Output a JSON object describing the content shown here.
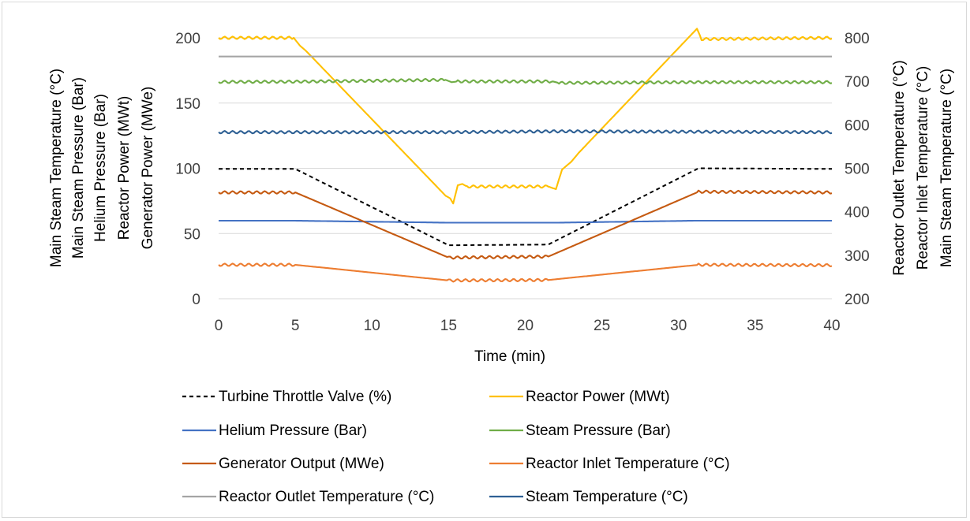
{
  "chart_data": {
    "type": "line",
    "xlabel": "Time (min)",
    "xlim": [
      0,
      40
    ],
    "x_ticks": [
      "0",
      "5",
      "10",
      "15",
      "20",
      "25",
      "30",
      "35",
      "40"
    ],
    "ylim_left": [
      0,
      200
    ],
    "ylim_right": [
      200,
      800
    ],
    "y_ticks_left": [
      "0",
      "50",
      "100",
      "150",
      "200"
    ],
    "y_ticks_right": [
      "200",
      "300",
      "400",
      "500",
      "600",
      "700",
      "800"
    ],
    "ylabel_left_lines": [
      "Main Steam Temperature (°C)",
      "Main Steam Pressure (Bar)",
      "Helium Pressure (Bar)",
      "Reactor Power (MWt)",
      "Generator Power (MWe)"
    ],
    "ylabel_right_lines": [
      "Reactor Outlet Temperature (°C)",
      "Reactor Inlet Temperature (°C)",
      "Main Steam Temperature (°C)"
    ],
    "grid": true,
    "legend_position": "bottom",
    "series": [
      {
        "name": "Turbine Throttle Valve (%)",
        "axis": "left",
        "color": "#000000",
        "dash": true,
        "points": [
          [
            0,
            99.5
          ],
          [
            5,
            99.5
          ],
          [
            15,
            41
          ],
          [
            21.5,
            41.5
          ],
          [
            31.3,
            100
          ],
          [
            40,
            99.5
          ]
        ]
      },
      {
        "name": "Reactor Power (MWt)",
        "axis": "left",
        "color": "#ffc000",
        "ripple": true,
        "points": [
          [
            0,
            200
          ],
          [
            4.9,
            200
          ],
          [
            5.3,
            194
          ],
          [
            5.7,
            190
          ],
          [
            14.8,
            79
          ],
          [
            15.1,
            77
          ],
          [
            15.3,
            73
          ],
          [
            15.6,
            87
          ],
          [
            15.9,
            88
          ],
          [
            16.2,
            86
          ],
          [
            21.5,
            86
          ],
          [
            22.0,
            84
          ],
          [
            22.4,
            99
          ],
          [
            23.0,
            105
          ],
          [
            23.5,
            112
          ],
          [
            31.2,
            207
          ],
          [
            31.5,
            199
          ],
          [
            40,
            200
          ]
        ]
      },
      {
        "name": "Helium Pressure (Bar)",
        "axis": "left",
        "color": "#4472c4",
        "points": [
          [
            0,
            59.8
          ],
          [
            5,
            59.8
          ],
          [
            15,
            58.3
          ],
          [
            22,
            58.3
          ],
          [
            31,
            59.8
          ],
          [
            40,
            59.8
          ]
        ]
      },
      {
        "name": "Steam Pressure (Bar)",
        "axis": "left",
        "color": "#70ad47",
        "ripple": true,
        "points": [
          [
            0,
            166.2
          ],
          [
            5,
            166.4
          ],
          [
            14.8,
            167.8
          ],
          [
            15.2,
            166.0
          ],
          [
            15.6,
            166.6
          ],
          [
            21.8,
            166.6
          ],
          [
            22.2,
            165.4
          ],
          [
            31,
            166.0
          ],
          [
            40,
            166.0
          ]
        ]
      },
      {
        "name": "Generator Output (MWe)",
        "axis": "left",
        "color": "#c55a11",
        "ripple": true,
        "points": [
          [
            0,
            81.5
          ],
          [
            5,
            81.5
          ],
          [
            15,
            31.5
          ],
          [
            21.5,
            32.3
          ],
          [
            31.3,
            82
          ],
          [
            40,
            81.5
          ]
        ]
      },
      {
        "name": "Reactor Inlet Temperature (°C)",
        "axis": "right",
        "color": "#ed7d31",
        "ripple": true,
        "points": [
          [
            0,
            278
          ],
          [
            5,
            278
          ],
          [
            15,
            242
          ],
          [
            21.5,
            243
          ],
          [
            31.3,
            278
          ],
          [
            40,
            277
          ]
        ]
      },
      {
        "name": "Reactor Outlet Temperature (°C)",
        "axis": "right",
        "color": "#a5a5a5",
        "points": [
          [
            0,
            757
          ],
          [
            40,
            757
          ]
        ]
      },
      {
        "name": "Steam Temperature (°C)",
        "axis": "right",
        "color": "#2e6094",
        "ripple": true,
        "points": [
          [
            0,
            583
          ],
          [
            15,
            583
          ],
          [
            22,
            585
          ],
          [
            31,
            584
          ],
          [
            40,
            583
          ]
        ]
      }
    ]
  }
}
